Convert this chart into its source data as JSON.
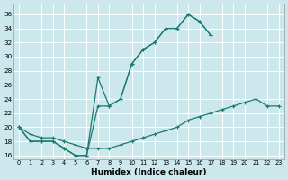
{
  "xlabel": "Humidex (Indice chaleur)",
  "bg_color": "#cce8ec",
  "grid_color": "#ffffff",
  "line_color": "#1a7a6e",
  "xlim": [
    -0.5,
    23.5
  ],
  "ylim": [
    15.5,
    37.5
  ],
  "xticks": [
    0,
    1,
    2,
    3,
    4,
    5,
    6,
    7,
    8,
    9,
    10,
    11,
    12,
    13,
    14,
    15,
    16,
    17,
    18,
    19,
    20,
    21,
    22,
    23
  ],
  "yticks": [
    16,
    18,
    20,
    22,
    24,
    26,
    28,
    30,
    32,
    34,
    36
  ],
  "line1_x": [
    0,
    1,
    2,
    3,
    4,
    5,
    6,
    7,
    8,
    9,
    10,
    11,
    12,
    13,
    14,
    15,
    16,
    17
  ],
  "line1_y": [
    20,
    18,
    18,
    18,
    17,
    16,
    16,
    27,
    23,
    24,
    29,
    31,
    32,
    34,
    34,
    36,
    35,
    33
  ],
  "line2_x": [
    0,
    1,
    2,
    3,
    4,
    5,
    6,
    7,
    8,
    9,
    10,
    11,
    12,
    13,
    14,
    15,
    16,
    17
  ],
  "line2_y": [
    20,
    18,
    18,
    18,
    17,
    16,
    16,
    23,
    23,
    24,
    29,
    31,
    32,
    34,
    34,
    36,
    35,
    33
  ],
  "line3_x": [
    0,
    1,
    2,
    3,
    4,
    5,
    6,
    7,
    8,
    9,
    10,
    11,
    12,
    13,
    14,
    15,
    16,
    17,
    18,
    19,
    20,
    21,
    22,
    23
  ],
  "line3_y": [
    20,
    19,
    18.5,
    18.5,
    18,
    17.5,
    17,
    17,
    17,
    17.5,
    18,
    18.5,
    19,
    19.5,
    20,
    21,
    21.5,
    22,
    22.5,
    23,
    23.5,
    24,
    23,
    23
  ]
}
